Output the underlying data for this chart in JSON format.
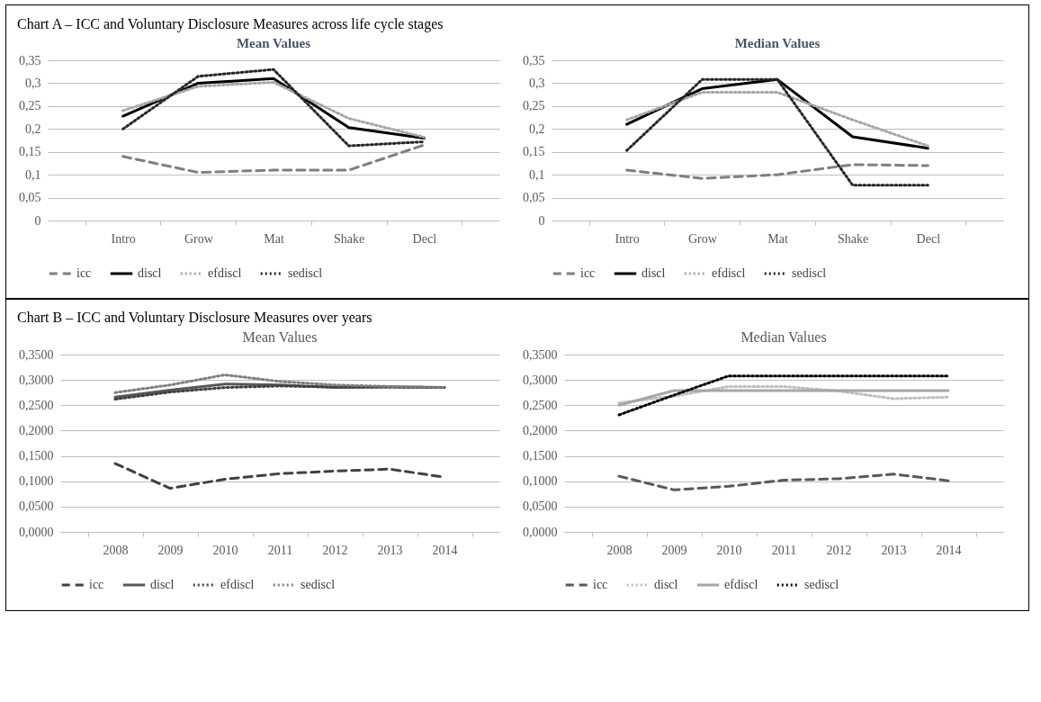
{
  "chart_data": [
    {
      "type": "line",
      "title": "Chart A – ICC and Voluntary Disclosure Measures across life cycle stages",
      "subtitle": "Mean Values",
      "categories": [
        "Intro",
        "Grow",
        "Mat",
        "Shake",
        "Decl"
      ],
      "ylim": [
        0,
        0.35
      ],
      "yticks": [
        0,
        {
          "value": 0.05,
          "label": "0,05"
        },
        {
          "value": 0.1,
          "label": "0,1"
        },
        {
          "value": 0.15,
          "label": "0,15"
        },
        {
          "value": 0.2,
          "label": "0,2"
        },
        {
          "value": 0.25,
          "label": "0,25"
        },
        {
          "value": 0.3,
          "label": "0,3"
        },
        {
          "value": 0.35,
          "label": "0,35"
        }
      ],
      "grid": "y",
      "legend": "bottom",
      "series": [
        {
          "name": "icc",
          "color": "#7f7f7f",
          "line_style": "dashed",
          "values": [
            0.14,
            0.105,
            0.11,
            0.11,
            0.165
          ]
        },
        {
          "name": "discl",
          "color": "#000000",
          "line_style": "solid",
          "values": [
            0.228,
            0.3,
            0.31,
            0.203,
            0.18
          ]
        },
        {
          "name": "efdiscl",
          "color": "#a6a6a6",
          "line_style": "dotted",
          "values": [
            0.24,
            0.293,
            0.302,
            0.223,
            0.182
          ]
        },
        {
          "name": "sediscl",
          "color": "#262626",
          "line_style": "dotted",
          "values": [
            0.2,
            0.315,
            0.33,
            0.163,
            0.172
          ]
        }
      ]
    },
    {
      "type": "line",
      "title": "Median Values",
      "categories": [
        "Intro",
        "Grow",
        "Mat",
        "Shake",
        "Decl"
      ],
      "ylim": [
        0,
        0.35
      ],
      "yticks": [
        0,
        {
          "value": 0.05,
          "label": "0,05"
        },
        {
          "value": 0.1,
          "label": "0,1"
        },
        {
          "value": 0.15,
          "label": "0,15"
        },
        {
          "value": 0.2,
          "label": "0,2"
        },
        {
          "value": 0.25,
          "label": "0,25"
        },
        {
          "value": 0.3,
          "label": "0,3"
        },
        {
          "value": 0.35,
          "label": "0,35"
        }
      ],
      "grid": "y",
      "legend": "bottom",
      "series": [
        {
          "name": "icc",
          "color": "#7f7f7f",
          "line_style": "dashed",
          "values": [
            0.11,
            0.092,
            0.1,
            0.122,
            0.12
          ]
        },
        {
          "name": "discl",
          "color": "#000000",
          "line_style": "solid",
          "values": [
            0.21,
            0.288,
            0.308,
            0.183,
            0.158
          ]
        },
        {
          "name": "efdiscl",
          "color": "#a6a6a6",
          "line_style": "dotted",
          "values": [
            0.22,
            0.28,
            0.28,
            0.22,
            0.163
          ]
        },
        {
          "name": "sediscl",
          "color": "#262626",
          "line_style": "dotted",
          "values": [
            0.153,
            0.308,
            0.308,
            0.077,
            0.077
          ]
        }
      ]
    },
    {
      "type": "line",
      "title": "Chart B – ICC and Voluntary Disclosure Measures over years",
      "subtitle": "Mean Values",
      "categories": [
        "2008",
        "2009",
        "2010",
        "2011",
        "2012",
        "2013",
        "2014"
      ],
      "ylim": [
        0,
        0.35
      ],
      "yticks": [
        {
          "value": 0,
          "label": "0,0000"
        },
        {
          "value": 0.05,
          "label": "0,0500"
        },
        {
          "value": 0.1,
          "label": "0,1000"
        },
        {
          "value": 0.15,
          "label": "0,1500"
        },
        {
          "value": 0.2,
          "label": "0,2000"
        },
        {
          "value": 0.25,
          "label": "0,2500"
        },
        {
          "value": 0.3,
          "label": "0,3000"
        },
        {
          "value": 0.35,
          "label": "0,3500"
        }
      ],
      "grid": "y",
      "legend": "bottom",
      "series": [
        {
          "name": "icc",
          "color": "#404040",
          "line_style": "dashed",
          "values": [
            0.135,
            0.086,
            0.104,
            0.115,
            0.12,
            0.124,
            0.108
          ]
        },
        {
          "name": "discl",
          "color": "#595959",
          "line_style": "solid",
          "values": [
            0.266,
            0.28,
            0.292,
            0.29,
            0.285,
            0.286,
            0.285
          ]
        },
        {
          "name": "efdiscl",
          "color": "#404040",
          "line_style": "dotted",
          "values": [
            0.262,
            0.276,
            0.285,
            0.288,
            0.286,
            0.286,
            0.285
          ]
        },
        {
          "name": "sediscl",
          "color": "#7f7f7f",
          "line_style": "dotted",
          "values": [
            0.275,
            0.29,
            0.31,
            0.297,
            0.29,
            0.287,
            0.285
          ]
        }
      ]
    },
    {
      "type": "line",
      "title": "Median Values",
      "categories": [
        "2008",
        "2009",
        "2010",
        "2011",
        "2012",
        "2013",
        "2014"
      ],
      "ylim": [
        0,
        0.35
      ],
      "yticks": [
        {
          "value": 0,
          "label": "0,0000"
        },
        {
          "value": 0.05,
          "label": "0,0500"
        },
        {
          "value": 0.1,
          "label": "0,1000"
        },
        {
          "value": 0.15,
          "label": "0,1500"
        },
        {
          "value": 0.2,
          "label": "0,2000"
        },
        {
          "value": 0.25,
          "label": "0,2500"
        },
        {
          "value": 0.3,
          "label": "0,3000"
        },
        {
          "value": 0.35,
          "label": "0,3500"
        }
      ],
      "grid": "y",
      "legend": "bottom",
      "series": [
        {
          "name": "icc",
          "color": "#595959",
          "line_style": "dashed",
          "values": [
            0.11,
            0.083,
            0.09,
            0.102,
            0.105,
            0.114,
            0.101
          ]
        },
        {
          "name": "discl",
          "color": "#bfbfbf",
          "line_style": "dotted",
          "values": [
            0.255,
            0.268,
            0.287,
            0.287,
            0.278,
            0.263,
            0.266
          ]
        },
        {
          "name": "efdiscl",
          "color": "#a6a6a6",
          "line_style": "solid",
          "values": [
            0.25,
            0.279,
            0.279,
            0.279,
            0.279,
            0.279,
            0.279
          ]
        },
        {
          "name": "sediscl",
          "color": "#000000",
          "line_style": "dotted",
          "values": [
            0.231,
            0.27,
            0.308,
            0.308,
            0.308,
            0.308,
            0.308
          ]
        }
      ]
    }
  ]
}
